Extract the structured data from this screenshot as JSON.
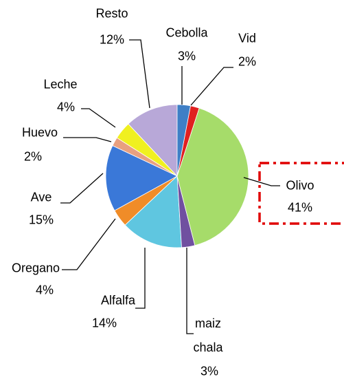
{
  "chart_data": {
    "type": "pie",
    "categories": [
      "Cebolla",
      "Vid",
      "Olivo",
      "maiz chala",
      "Alfalfa",
      "Oregano",
      "Ave",
      "Huevo",
      "Leche",
      "Resto"
    ],
    "values": [
      3,
      2,
      41,
      3,
      14,
      4,
      15,
      2,
      4,
      12
    ],
    "value_labels": [
      "3%",
      "2%",
      "41%",
      "3%",
      "14%",
      "4%",
      "15%",
      "2%",
      "4%",
      "12%"
    ],
    "colors": [
      "#3f7fc6",
      "#e02020",
      "#a6dc6a",
      "#7050a0",
      "#5fc6e0",
      "#f08c28",
      "#3a78d8",
      "#e8a080",
      "#f0f020",
      "#b8a8d8"
    ]
  }
}
